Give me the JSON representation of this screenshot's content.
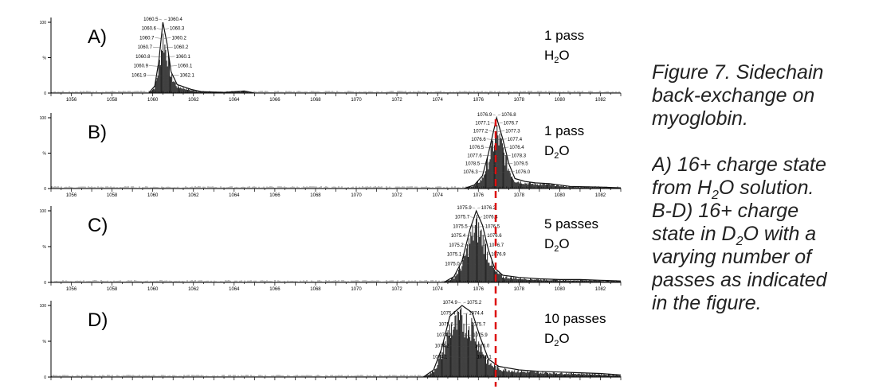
{
  "caption": {
    "line1": "Figure 7. Sidechain",
    "line2": "back-exchange on",
    "line3": "myoglobin.",
    "line4": "A) 16+ charge state",
    "line5a": "from H",
    "line5b": "2",
    "line5c": "O solution.",
    "line6": "B-D) 16+ charge",
    "line7a": "state in D",
    "line7b": "2",
    "line7c": "O with a",
    "line8": "varying number of",
    "line9": "passes as indicated",
    "line10": "in the figure."
  },
  "colors": {
    "trace": "#111111",
    "marker": "#dd1111",
    "axis": "#000000"
  },
  "chart_data": [
    {
      "type": "line",
      "panel": "A)",
      "condition_line1": "1 pass",
      "condition_line2": [
        "H",
        "2",
        "O"
      ],
      "x_ticks": [
        "1056",
        "1058",
        "1060",
        "1062",
        "1064",
        "1066",
        "1068",
        "1070",
        "1072",
        "1074",
        "1076",
        "1078",
        "1080",
        "1082"
      ],
      "y_ticks": [
        "100",
        "%",
        "0"
      ],
      "xlim": [
        1055,
        1083
      ],
      "ylim": [
        0,
        100
      ],
      "peak_labels": [
        "1060.5",
        "1060.4",
        "1060.6",
        "1060.3",
        "1060.7",
        "1060.2",
        "1060.7",
        "1060.2",
        "1060.8",
        "1060.1",
        "1060.9",
        "1060.1",
        "1061.9",
        "1062.1"
      ],
      "envelope": [
        [
          1059.8,
          0
        ],
        [
          1060.1,
          10
        ],
        [
          1060.3,
          45
        ],
        [
          1060.5,
          100
        ],
        [
          1060.7,
          70
        ],
        [
          1060.9,
          30
        ],
        [
          1061.2,
          12
        ],
        [
          1061.9,
          5
        ],
        [
          1062.4,
          2
        ],
        [
          1063.5,
          1
        ],
        [
          1064.5,
          3
        ],
        [
          1065,
          0
        ]
      ]
    },
    {
      "type": "line",
      "panel": "B)",
      "condition_line1": "1 pass",
      "condition_line2": [
        "D",
        "2",
        "O"
      ],
      "x_ticks": [
        "1056",
        "1058",
        "1060",
        "1062",
        "1064",
        "1066",
        "1068",
        "1070",
        "1072",
        "1074",
        "1076",
        "1078",
        "1080",
        "1082"
      ],
      "y_ticks": [
        "100",
        "%",
        "0"
      ],
      "xlim": [
        1055,
        1083
      ],
      "ylim": [
        0,
        100
      ],
      "peak_labels": [
        "1076.9",
        "1076.8",
        "1077.1",
        "1076.7",
        "1077.2",
        "1077.3",
        "1076.6",
        "1077.4",
        "1076.5",
        "1076.4",
        "1077.6",
        "1078.3",
        "1078.5",
        "1079.5",
        "1076.3",
        "1076.0"
      ],
      "envelope": [
        [
          1075.3,
          0
        ],
        [
          1075.8,
          5
        ],
        [
          1076.2,
          18
        ],
        [
          1076.5,
          50
        ],
        [
          1076.9,
          100
        ],
        [
          1077.2,
          70
        ],
        [
          1077.5,
          35
        ],
        [
          1077.8,
          14
        ],
        [
          1078.3,
          10
        ],
        [
          1078.8,
          8
        ],
        [
          1079.5,
          7
        ],
        [
          1080.5,
          3
        ],
        [
          1082,
          2
        ],
        [
          1083,
          1
        ]
      ]
    },
    {
      "type": "line",
      "panel": "C)",
      "condition_line1": "5 passes",
      "condition_line2": [
        "D",
        "2",
        "O"
      ],
      "x_ticks": [
        "1056",
        "1058",
        "1060",
        "1062",
        "1064",
        "1066",
        "1068",
        "1070",
        "1072",
        "1074",
        "1076",
        "1078",
        "1080",
        "1082"
      ],
      "y_ticks": [
        "100",
        "%",
        "0"
      ],
      "xlim": [
        1055,
        1083
      ],
      "ylim": [
        0,
        100
      ],
      "peak_labels": [
        "1075.9",
        "1076.2",
        "1075.7",
        "1076.4",
        "1075.5",
        "1076.5",
        "1075.4",
        "1076.6",
        "1075.2",
        "1076.7",
        "1075.1",
        "1076.9",
        "1075.0"
      ],
      "envelope": [
        [
          1074.3,
          0
        ],
        [
          1074.8,
          8
        ],
        [
          1075.2,
          30
        ],
        [
          1075.6,
          75
        ],
        [
          1075.9,
          100
        ],
        [
          1076.2,
          80
        ],
        [
          1076.5,
          45
        ],
        [
          1076.8,
          20
        ],
        [
          1077.2,
          10
        ],
        [
          1078,
          7
        ],
        [
          1079,
          5
        ],
        [
          1080,
          4
        ],
        [
          1081,
          4
        ],
        [
          1082,
          3
        ],
        [
          1083,
          2
        ]
      ]
    },
    {
      "type": "line",
      "panel": "D)",
      "condition_line1": "10 passes",
      "condition_line2": [
        "D",
        "2",
        "O"
      ],
      "x_ticks": [],
      "y_ticks": [
        "100",
        "%",
        "0"
      ],
      "xlim": [
        1055,
        1083
      ],
      "ylim": [
        0,
        100
      ],
      "peak_labels": [
        "1074.9",
        "1075.2",
        "1075.4",
        "1074.4",
        "1075.6",
        "1075.7",
        "1074.3",
        "1075.9",
        "1074.2",
        "1076.0",
        "1074.1",
        "1076.1"
      ],
      "envelope": [
        [
          1073.3,
          0
        ],
        [
          1073.8,
          10
        ],
        [
          1074.2,
          40
        ],
        [
          1074.6,
          85
        ],
        [
          1075.2,
          100
        ],
        [
          1075.7,
          90
        ],
        [
          1076.1,
          55
        ],
        [
          1076.5,
          25
        ],
        [
          1077,
          15
        ],
        [
          1078,
          10
        ],
        [
          1079,
          8
        ],
        [
          1080,
          7
        ],
        [
          1081,
          6
        ],
        [
          1082,
          5
        ],
        [
          1083,
          3
        ]
      ]
    }
  ]
}
